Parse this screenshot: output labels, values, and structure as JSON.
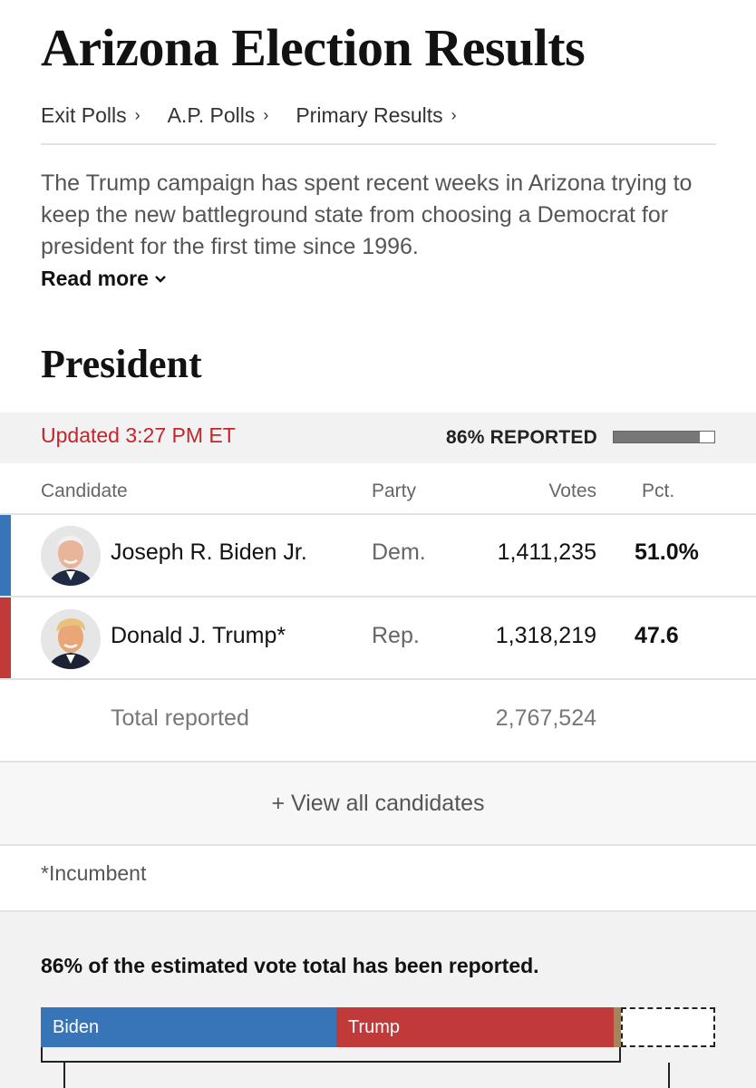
{
  "page": {
    "title": "Arizona Election Results",
    "subnav": [
      {
        "label": "Exit Polls",
        "chevron": "›"
      },
      {
        "label": "A.P. Polls",
        "chevron": "›"
      },
      {
        "label": "Primary Results",
        "chevron": "›"
      }
    ],
    "summary": "The Trump campaign has spent recent weeks in Arizona trying to keep the new battleground state from choosing a Democrat for president for the first time since 1996.",
    "read_more": "Read more"
  },
  "race": {
    "title": "President",
    "updated": "Updated 3:27 PM ET",
    "reported_label": "86% REPORTED",
    "reported_fraction": 0.86,
    "columns": {
      "candidate": "Candidate",
      "party": "Party",
      "votes": "Votes",
      "pct": "Pct."
    },
    "candidates": [
      {
        "name": "Joseph R. Biden Jr.",
        "party": "Dem.",
        "votes": "1,411,235",
        "pct": "51.0%",
        "color": "#3874b8",
        "avatar_icon": "biden-portrait"
      },
      {
        "name": "Donald J. Trump*",
        "party": "Rep.",
        "votes": "1,318,219",
        "pct": "47.6",
        "color": "#bf3a39",
        "avatar_icon": "trump-portrait"
      }
    ],
    "total_label": "Total reported",
    "total_votes": "2,767,524",
    "view_all": "+ View all candidates",
    "footnote": "*Incumbent"
  },
  "estimate": {
    "note": "86% of the estimated vote total has been reported.",
    "bar": [
      {
        "label": "Biden",
        "color": "#3874b8"
      },
      {
        "label": "Trump",
        "color": "#bf3a39"
      },
      {
        "label": "",
        "color": "#a1855b"
      }
    ]
  }
}
